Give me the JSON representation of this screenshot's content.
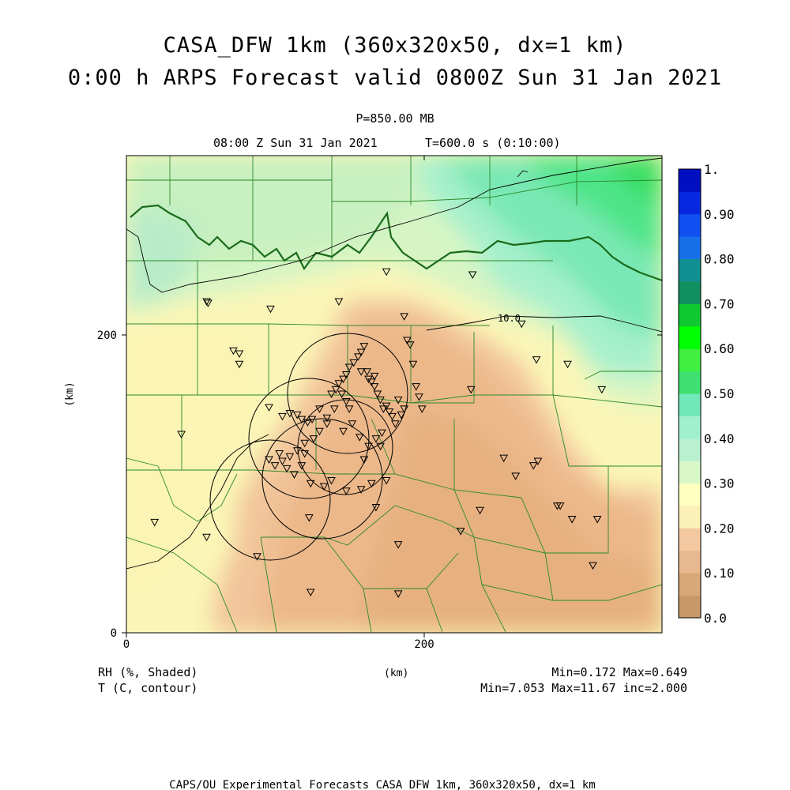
{
  "title": {
    "line1": "CASA_DFW 1km (360x320x50, dx=1 km)",
    "line2": "0:00 h ARPS Forecast valid 0800Z Sun 31 Jan 2021"
  },
  "subtitle": {
    "level": "P=850.00 MB",
    "valid_time": "08:00 Z Sun 31 Jan 2021",
    "model_time": "T=600.0 s (0:10:00)"
  },
  "axes": {
    "x_ticks": [
      "0",
      "200"
    ],
    "y_ticks": [
      "0",
      "200"
    ],
    "x_label": "(km)",
    "y_label": "(km)",
    "x_range": [
      0,
      360
    ],
    "y_range": [
      0,
      320
    ]
  },
  "contour_label": "10.0",
  "colorbar": {
    "labels": [
      "0.0",
      "0.10",
      "0.20",
      "0.30",
      "0.40",
      "0.50",
      "0.60",
      "0.70",
      "0.80",
      "0.90",
      "1."
    ],
    "colors": [
      "#c89868",
      "#d8a878",
      "#e8b890",
      "#f4c8a0",
      "#fbf0b8",
      "#ffffc0",
      "#d8f8c8",
      "#b8f0d0",
      "#a0f0d0",
      "#70e8b8",
      "#40e070",
      "#40f040",
      "#00ff00",
      "#10c830",
      "#109060",
      "#109090",
      "#1870e8",
      "#1050f0",
      "#0828e0",
      "#0010c0"
    ]
  },
  "legend": {
    "shaded": "RH (%, Shaded)",
    "contour": "T (C, contour)",
    "unit": "(km)",
    "rh_stats": "Min=0.172 Max=0.649",
    "t_stats": "Min=7.053 Max=11.67 inc=2.000"
  },
  "footer": "CAPS/OU Experimental Forecasts  CASA DFW 1km, 360x320x50, dx=1 km",
  "colors": {
    "county_lines": "#2a8a2a",
    "contour_lines": "#000000",
    "frame": "#000000"
  },
  "stations_km": [
    [
      54,
      222
    ],
    [
      55,
      221
    ],
    [
      97,
      217
    ],
    [
      143,
      222
    ],
    [
      175,
      242
    ],
    [
      187,
      212
    ],
    [
      233,
      240
    ],
    [
      72,
      189
    ],
    [
      76,
      187
    ],
    [
      76,
      180
    ],
    [
      96,
      151
    ],
    [
      105,
      145
    ],
    [
      110,
      147
    ],
    [
      115,
      146
    ],
    [
      118,
      143
    ],
    [
      122,
      141
    ],
    [
      125,
      143
    ],
    [
      130,
      150
    ],
    [
      135,
      144
    ],
    [
      138,
      160
    ],
    [
      141,
      163
    ],
    [
      143,
      167
    ],
    [
      146,
      170
    ],
    [
      148,
      173
    ],
    [
      150,
      178
    ],
    [
      153,
      181
    ],
    [
      156,
      185
    ],
    [
      158,
      188
    ],
    [
      160,
      192
    ],
    [
      162,
      175
    ],
    [
      163,
      170
    ],
    [
      165,
      168
    ],
    [
      167,
      165
    ],
    [
      169,
      160
    ],
    [
      171,
      156
    ],
    [
      173,
      150
    ],
    [
      175,
      152
    ],
    [
      177,
      148
    ],
    [
      179,
      145
    ],
    [
      181,
      140
    ],
    [
      183,
      156
    ],
    [
      185,
      146
    ],
    [
      187,
      150
    ],
    [
      189,
      196
    ],
    [
      191,
      193
    ],
    [
      193,
      180
    ],
    [
      195,
      165
    ],
    [
      197,
      158
    ],
    [
      199,
      150
    ],
    [
      150,
      150
    ],
    [
      148,
      155
    ],
    [
      145,
      160
    ],
    [
      140,
      150
    ],
    [
      135,
      140
    ],
    [
      130,
      135
    ],
    [
      126,
      130
    ],
    [
      120,
      127
    ],
    [
      115,
      122
    ],
    [
      110,
      118
    ],
    [
      105,
      115
    ],
    [
      100,
      112
    ],
    [
      96,
      116
    ],
    [
      103,
      120
    ],
    [
      108,
      110
    ],
    [
      118,
      112
    ],
    [
      124,
      100
    ],
    [
      133,
      98
    ],
    [
      138,
      102
    ],
    [
      148,
      95
    ],
    [
      158,
      96
    ],
    [
      165,
      100
    ],
    [
      168,
      84
    ],
    [
      175,
      102
    ],
    [
      123,
      77
    ],
    [
      37,
      133
    ],
    [
      19,
      74
    ],
    [
      54,
      64
    ],
    [
      88,
      51
    ],
    [
      124,
      27
    ],
    [
      183,
      26
    ],
    [
      183,
      59
    ],
    [
      225,
      68
    ],
    [
      238,
      82
    ],
    [
      232,
      163
    ],
    [
      254,
      117
    ],
    [
      262,
      105
    ],
    [
      274,
      112
    ],
    [
      277,
      115
    ],
    [
      290,
      85
    ],
    [
      292,
      85
    ],
    [
      300,
      76
    ],
    [
      317,
      76
    ],
    [
      314,
      45
    ],
    [
      266,
      207
    ],
    [
      276,
      183
    ],
    [
      297,
      180
    ],
    [
      320,
      163
    ],
    [
      160,
      116
    ],
    [
      171,
      125
    ],
    [
      146,
      135
    ],
    [
      152,
      140
    ],
    [
      157,
      131
    ],
    [
      163,
      125
    ],
    [
      168,
      130
    ],
    [
      172,
      134
    ],
    [
      120,
      120
    ],
    [
      113,
      106
    ],
    [
      158,
      175
    ],
    [
      167,
      172
    ]
  ]
}
